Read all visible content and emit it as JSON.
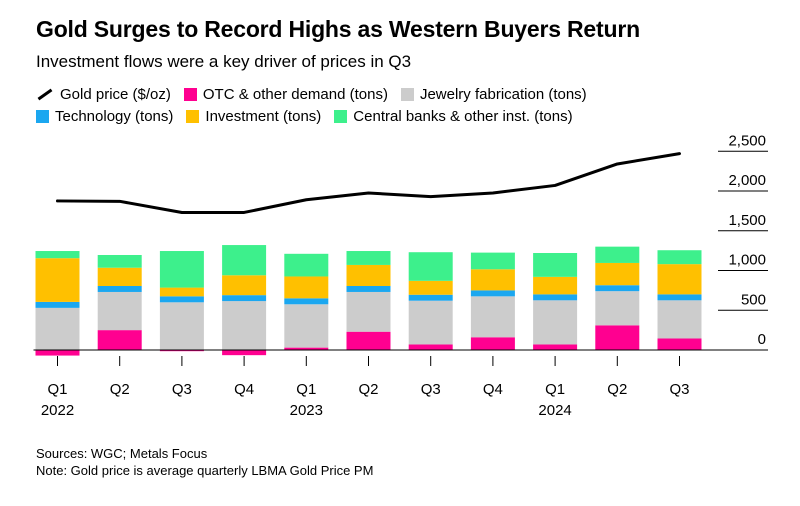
{
  "chart_data": {
    "type": "bar",
    "title": "Gold Surges to Record Highs as Western Buyers Return",
    "subtitle": "Investment flows were a key driver of prices in Q3",
    "categories": [
      "Q1",
      "Q2",
      "Q3",
      "Q4",
      "Q1",
      "Q2",
      "Q3",
      "Q4",
      "Q1",
      "Q2",
      "Q3"
    ],
    "year_labels": [
      {
        "index": 0,
        "label": "2022"
      },
      {
        "index": 4,
        "label": "2023"
      },
      {
        "index": 8,
        "label": "2024"
      }
    ],
    "stacked": true,
    "series": [
      {
        "name": "OTC & other demand (tons)",
        "color": "#ff0090",
        "values": [
          -70,
          250,
          -15,
          -65,
          30,
          230,
          70,
          160,
          70,
          310,
          145
        ]
      },
      {
        "name": "Jewelry fabrication (tons)",
        "color": "#cccccc",
        "values": [
          530,
          480,
          600,
          615,
          545,
          500,
          550,
          515,
          555,
          430,
          480
        ]
      },
      {
        "name": "Technology (tons)",
        "color": "#1ba7f0",
        "values": [
          75,
          75,
          75,
          75,
          75,
          75,
          75,
          75,
          75,
          75,
          75
        ]
      },
      {
        "name": "Investment (tons)",
        "color": "#ffc000",
        "values": [
          550,
          230,
          110,
          250,
          275,
          265,
          175,
          265,
          220,
          280,
          380
        ]
      },
      {
        "name": "Central banks & other inst. (tons)",
        "color": "#3df08c",
        "values": [
          90,
          160,
          460,
          380,
          285,
          175,
          360,
          210,
          300,
          205,
          175
        ]
      }
    ],
    "line_series": {
      "name": "Gold price ($/oz)",
      "color": "#000000",
      "values": [
        1875,
        1870,
        1730,
        1730,
        1890,
        1975,
        1930,
        1975,
        2070,
        2340,
        2470
      ]
    },
    "ylim": [
      -150,
      2600
    ],
    "yticks": [
      0,
      500,
      1000,
      1500,
      2000,
      2500
    ],
    "ytick_labels": [
      "0",
      "500",
      "1,000",
      "1,500",
      "2,000",
      "2,500"
    ],
    "grid": false,
    "legend_position": "top-left"
  },
  "footer": {
    "sources": "Sources: WGC; Metals Focus",
    "note": "Note: Gold price is average quarterly LBMA Gold Price PM"
  }
}
